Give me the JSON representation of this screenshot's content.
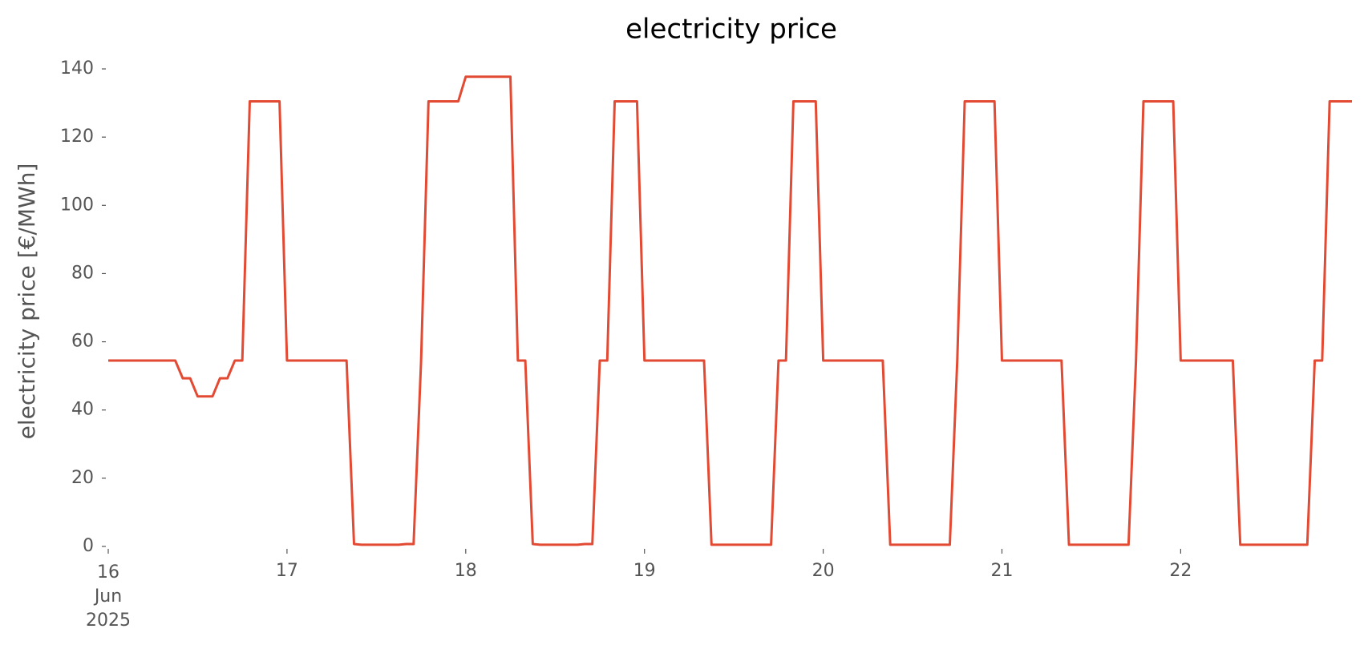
{
  "chart_data": {
    "type": "line",
    "title": "electricity price",
    "y_label": "electricity price [€/MWh]",
    "xlim": [
      16,
      22.9583
    ],
    "ylim": [
      0,
      140
    ],
    "yticks": [
      0,
      20,
      40,
      60,
      80,
      100,
      120,
      140
    ],
    "xticks": [
      {
        "value": 16,
        "label": "16\nJun\n2025"
      },
      17,
      18,
      19,
      20,
      21,
      22
    ],
    "grid": false,
    "series": [
      {
        "name": "electricity price",
        "color": "#e24a33",
        "x": [
          16,
          16.375,
          16.4167,
          16.4583,
          16.5,
          16.5833,
          16.625,
          16.6667,
          16.7083,
          16.75,
          16.7917,
          16.9583,
          17,
          17.3333,
          17.375,
          17.4167,
          17.625,
          17.6667,
          17.7083,
          17.75,
          17.7917,
          17.9583,
          18,
          18.25,
          18.2917,
          18.3333,
          18.375,
          18.4167,
          18.625,
          18.6667,
          18.7083,
          18.75,
          18.7917,
          18.8333,
          18.9583,
          19,
          19.3333,
          19.375,
          19.7083,
          19.75,
          19.7917,
          19.8333,
          19.9583,
          20,
          20.3333,
          20.375,
          20.7083,
          20.75,
          20.7917,
          20.9583,
          21,
          21.3333,
          21.375,
          21.7083,
          21.75,
          21.7917,
          21.9583,
          22,
          22.2917,
          22.3333,
          22.7083,
          22.75,
          22.7917,
          22.8333,
          22.9583
        ],
        "values": [
          54.5,
          54.5,
          49.3,
          49.3,
          44,
          44,
          49.3,
          49.3,
          54.5,
          54.5,
          130.5,
          130.5,
          54.5,
          54.5,
          0.7,
          0.5,
          0.5,
          0.7,
          0.7,
          54,
          130.5,
          130.5,
          137.7,
          137.7,
          54.5,
          54.5,
          0.7,
          0.5,
          0.5,
          0.7,
          0.7,
          54.5,
          54.5,
          130.5,
          130.5,
          54.5,
          54.5,
          0.5,
          0.5,
          54.5,
          54.5,
          130.5,
          130.5,
          54.5,
          54.5,
          0.5,
          0.5,
          54.5,
          130.5,
          130.5,
          54.5,
          54.5,
          0.5,
          0.5,
          54.5,
          130.5,
          130.5,
          54.5,
          54.5,
          0.5,
          0.5,
          54.5,
          54.5,
          130.5,
          130.5
        ]
      }
    ]
  }
}
